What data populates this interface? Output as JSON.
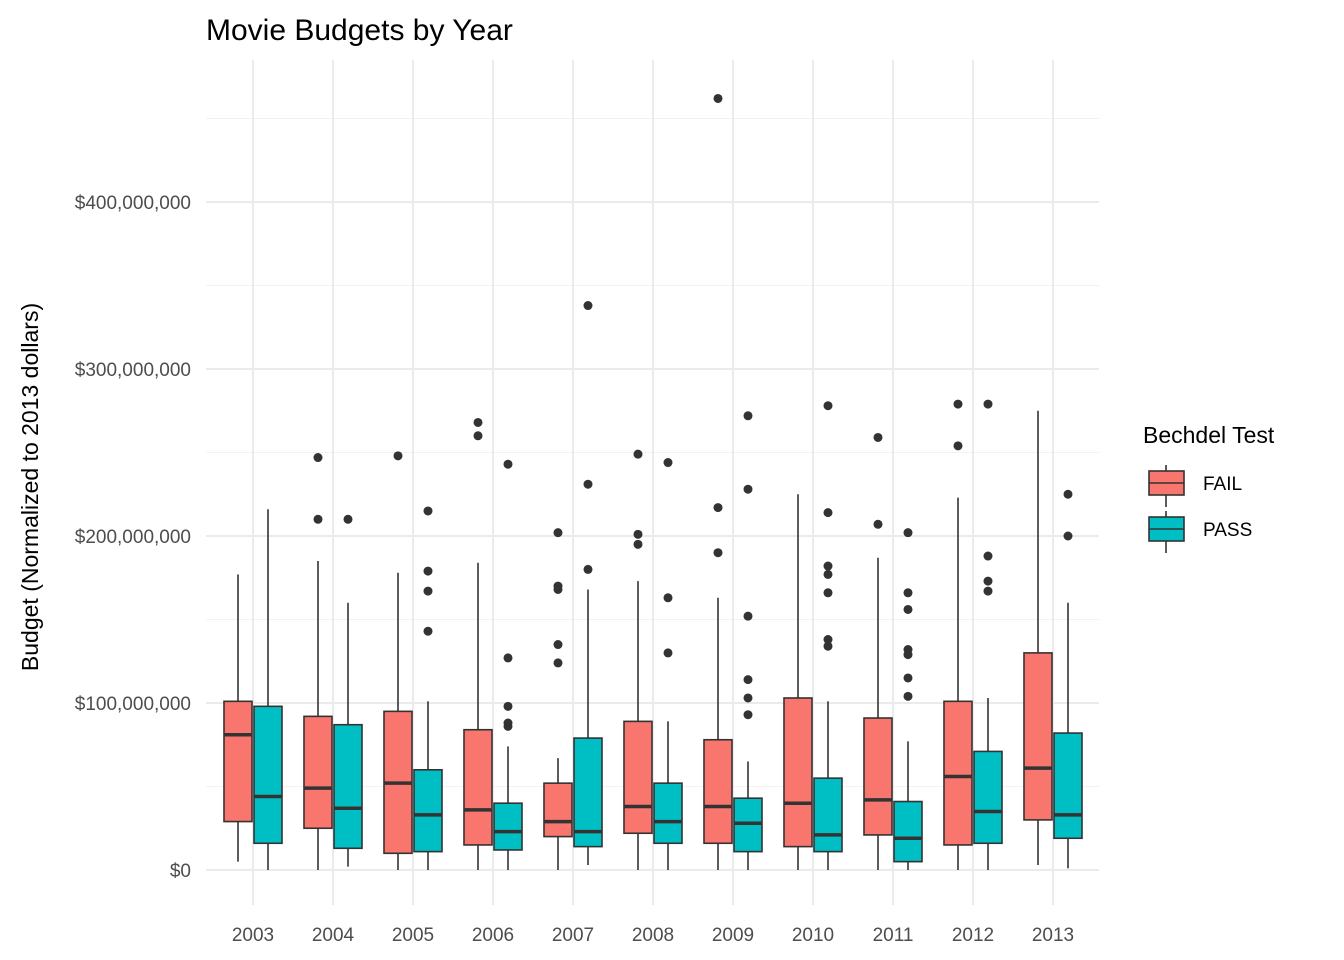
{
  "chart_data": {
    "type": "box",
    "title": "Movie Budgets by Year",
    "xlabel": "",
    "ylabel": "Budget (Normalized to 2013 dollars)",
    "ylim": [
      -20000000,
      485000000
    ],
    "y_ticks": [
      0,
      100000000,
      200000000,
      300000000,
      400000000
    ],
    "y_tick_labels": [
      "$0",
      "$100,000,000",
      "$200,000,000",
      "$300,000,000",
      "$400,000,000"
    ],
    "categories": [
      "2003",
      "2004",
      "2005",
      "2006",
      "2007",
      "2008",
      "2009",
      "2010",
      "2011",
      "2012",
      "2013"
    ],
    "grid": true,
    "legend": {
      "title": "Bechdel Test",
      "position": "right",
      "entries": [
        "FAIL",
        "PASS"
      ]
    },
    "series": [
      {
        "name": "FAIL",
        "color": "#F8766D",
        "boxes": [
          {
            "lower": 5000000,
            "q1": 29000000,
            "median": 81000000,
            "q3": 101000000,
            "upper": 177000000,
            "outliers": []
          },
          {
            "lower": 0,
            "q1": 25000000,
            "median": 49000000,
            "q3": 92000000,
            "upper": 185000000,
            "outliers": [
              210000000,
              247000000
            ]
          },
          {
            "lower": 0,
            "q1": 10000000,
            "median": 52000000,
            "q3": 95000000,
            "upper": 178000000,
            "outliers": [
              248000000
            ]
          },
          {
            "lower": 0,
            "q1": 15000000,
            "median": 36000000,
            "q3": 84000000,
            "upper": 184000000,
            "outliers": [
              260000000,
              268000000
            ]
          },
          {
            "lower": 0,
            "q1": 20000000,
            "median": 29000000,
            "q3": 52000000,
            "upper": 67000000,
            "outliers": [
              124000000,
              135000000,
              168000000,
              170000000,
              202000000
            ]
          },
          {
            "lower": 0,
            "q1": 22000000,
            "median": 38000000,
            "q3": 89000000,
            "upper": 173000000,
            "outliers": [
              195000000,
              201000000,
              249000000
            ]
          },
          {
            "lower": 0,
            "q1": 16000000,
            "median": 38000000,
            "q3": 78000000,
            "upper": 163000000,
            "outliers": [
              190000000,
              217000000,
              462000000
            ]
          },
          {
            "lower": 0,
            "q1": 14000000,
            "median": 40000000,
            "q3": 103000000,
            "upper": 225000000,
            "outliers": []
          },
          {
            "lower": 0,
            "q1": 21000000,
            "median": 42000000,
            "q3": 91000000,
            "upper": 187000000,
            "outliers": [
              207000000,
              259000000
            ]
          },
          {
            "lower": 0,
            "q1": 15000000,
            "median": 56000000,
            "q3": 101000000,
            "upper": 223000000,
            "outliers": [
              254000000,
              279000000
            ]
          },
          {
            "lower": 3000000,
            "q1": 30000000,
            "median": 61000000,
            "q3": 130000000,
            "upper": 275000000,
            "outliers": []
          }
        ]
      },
      {
        "name": "PASS",
        "color": "#00BFC4",
        "boxes": [
          {
            "lower": 0,
            "q1": 16000000,
            "median": 44000000,
            "q3": 98000000,
            "upper": 216000000,
            "outliers": []
          },
          {
            "lower": 2000000,
            "q1": 13000000,
            "median": 37000000,
            "q3": 87000000,
            "upper": 160000000,
            "outliers": [
              210000000
            ]
          },
          {
            "lower": 0,
            "q1": 11000000,
            "median": 33000000,
            "q3": 60000000,
            "upper": 101000000,
            "outliers": [
              143000000,
              167000000,
              179000000,
              215000000
            ]
          },
          {
            "lower": 0,
            "q1": 12000000,
            "median": 23000000,
            "q3": 40000000,
            "upper": 74000000,
            "outliers": [
              86000000,
              88000000,
              98000000,
              127000000,
              243000000
            ]
          },
          {
            "lower": 3000000,
            "q1": 14000000,
            "median": 23000000,
            "q3": 79000000,
            "upper": 168000000,
            "outliers": [
              180000000,
              231000000,
              338000000
            ]
          },
          {
            "lower": 0,
            "q1": 16000000,
            "median": 29000000,
            "q3": 52000000,
            "upper": 89000000,
            "outliers": [
              130000000,
              163000000,
              244000000
            ]
          },
          {
            "lower": 0,
            "q1": 11000000,
            "median": 28000000,
            "q3": 43000000,
            "upper": 65000000,
            "outliers": [
              93000000,
              103000000,
              114000000,
              152000000,
              228000000,
              272000000
            ]
          },
          {
            "lower": 0,
            "q1": 11000000,
            "median": 21000000,
            "q3": 55000000,
            "upper": 101000000,
            "outliers": [
              134000000,
              138000000,
              166000000,
              177000000,
              182000000,
              214000000,
              278000000
            ]
          },
          {
            "lower": 0,
            "q1": 5000000,
            "median": 19000000,
            "q3": 41000000,
            "upper": 77000000,
            "outliers": [
              104000000,
              115000000,
              129000000,
              132000000,
              156000000,
              166000000,
              202000000
            ]
          },
          {
            "lower": 0,
            "q1": 16000000,
            "median": 35000000,
            "q3": 71000000,
            "upper": 103000000,
            "outliers": [
              167000000,
              173000000,
              188000000,
              279000000
            ]
          },
          {
            "lower": 1000000,
            "q1": 19000000,
            "median": 33000000,
            "q3": 82000000,
            "upper": 160000000,
            "outliers": [
              200000000,
              225000000
            ]
          }
        ]
      }
    ]
  }
}
